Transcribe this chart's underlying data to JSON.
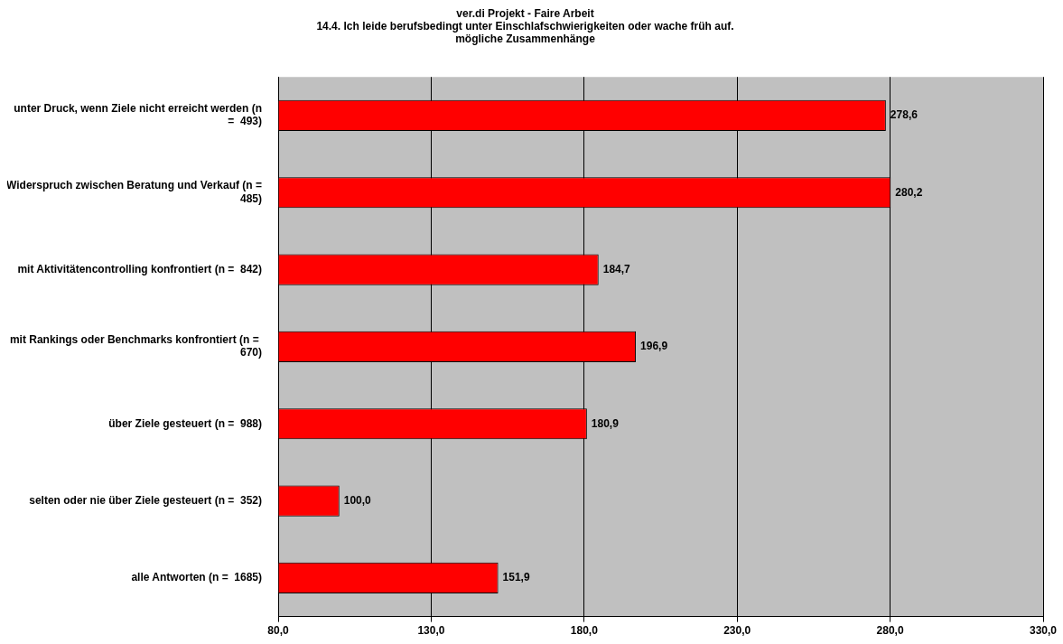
{
  "chart_data": {
    "type": "bar",
    "orientation": "horizontal",
    "title": "ver.di Projekt - Faire Arbeit\n14.4. Ich leide berufsbedingt unter Einschlafschwierigkeiten oder wache früh auf.\nmögliche Zusammenhänge",
    "categories": [
      "unter Druck, wenn Ziele nicht erreicht werden (n =  493)",
      "Widerspruch zwischen Beratung und Verkauf (n =  485)",
      "mit Aktivitätencontrolling konfrontiert (n =  842)",
      "mit Rankings oder Benchmarks konfrontiert (n =  670)",
      "über Ziele gesteuert (n =  988)",
      "selten oder nie über Ziele gesteuert (n =  352)",
      "alle Antworten (n =  1685)"
    ],
    "values": [
      278.6,
      280.2,
      184.7,
      196.9,
      180.9,
      100.0,
      151.9
    ],
    "value_labels": [
      "278,6",
      "280,2",
      "184,7",
      "196,9",
      "180,9",
      "100,0",
      "151,9"
    ],
    "color": "#ff0000",
    "xlim": [
      80,
      330
    ],
    "xticks": [
      {
        "value": 80,
        "label": "80,0"
      },
      {
        "value": 130,
        "label": "130,0"
      },
      {
        "value": 180,
        "label": "180,0"
      },
      {
        "value": 230,
        "label": "230,0"
      },
      {
        "value": 280,
        "label": "280,0"
      },
      {
        "value": 330,
        "label": "330,0"
      }
    ],
    "grid": "x"
  }
}
